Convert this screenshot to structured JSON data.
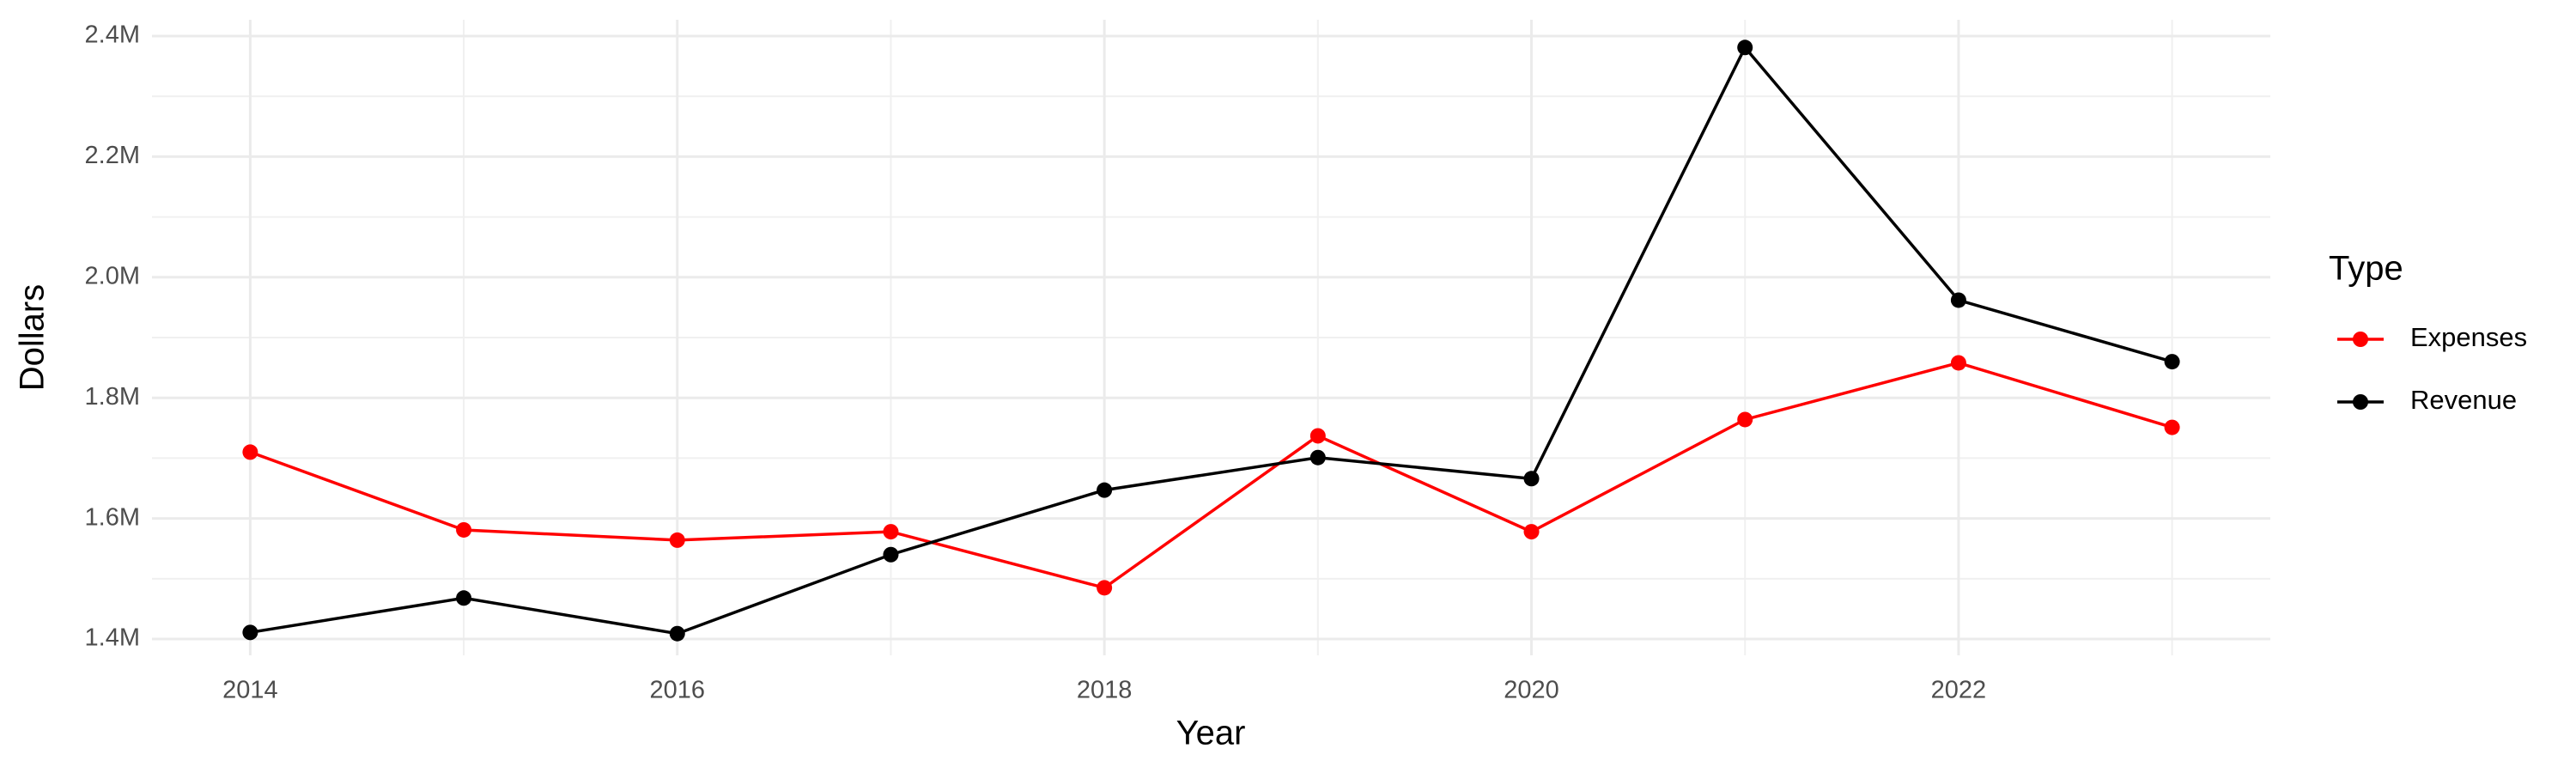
{
  "chart_data": {
    "type": "line",
    "x_label": "Year",
    "y_label": "Dollars",
    "legend_title": "Type",
    "x": [
      2014,
      2015,
      2016,
      2017,
      2018,
      2019,
      2020,
      2021,
      2022,
      2023
    ],
    "series": [
      {
        "name": "Expenses",
        "color": "#ff0000",
        "values": [
          1710000,
          1581000,
          1564000,
          1578000,
          1485000,
          1737000,
          1578000,
          1764000,
          1858000,
          1751000
        ]
      },
      {
        "name": "Revenue",
        "color": "#000000",
        "values": [
          1411000,
          1468000,
          1409000,
          1540000,
          1647000,
          1701000,
          1666000,
          2381000,
          1962000,
          1860000
        ]
      }
    ],
    "xlim": [
      2013.54,
      2023.46
    ],
    "xticks": [
      2014,
      2016,
      2018,
      2020,
      2022
    ],
    "ylim": [
      1373000,
      2427000
    ],
    "yticks": [
      {
        "value": 1400000,
        "label": "1.4M"
      },
      {
        "value": 1600000,
        "label": "1.6M"
      },
      {
        "value": 1800000,
        "label": "1.8M"
      },
      {
        "value": 2000000,
        "label": "2.0M"
      },
      {
        "value": 2200000,
        "label": "2.2M"
      },
      {
        "value": 2400000,
        "label": "2.4M"
      }
    ],
    "grid": true,
    "legend": "right"
  }
}
